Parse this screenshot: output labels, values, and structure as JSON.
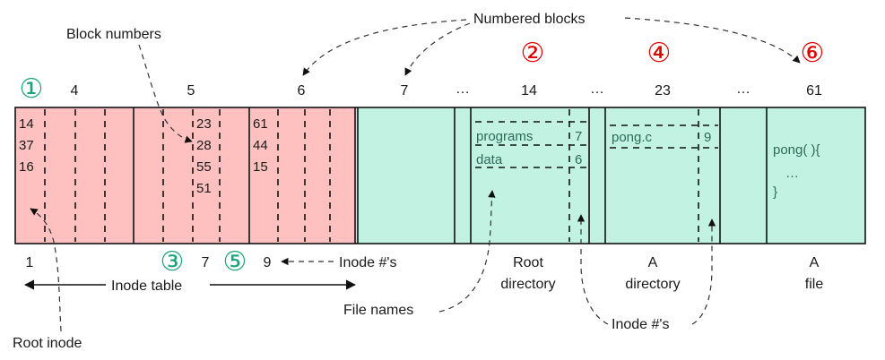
{
  "labels": {
    "numbered_blocks": "Numbered blocks",
    "block_numbers": "Block numbers",
    "inode_nums_right": "Inode #'s",
    "inode_table": "Inode table",
    "file_names": "File names",
    "inode_nums_bottom": "Inode #'s",
    "root_inode": "Root inode",
    "root_dir_1": "Root",
    "root_dir_2": "directory",
    "a_dir_1": "A",
    "a_dir_2": "directory",
    "a_file_1": "A",
    "a_file_2": "file"
  },
  "top_numbers": {
    "b4": "4",
    "b5": "5",
    "b6": "6",
    "b7": "7",
    "dots1": "…",
    "b14": "14",
    "dots2": "…",
    "b23": "23",
    "dots3": "…",
    "b61": "61"
  },
  "bottom_numbers": {
    "n1": "1",
    "n7": "7",
    "n9": "9"
  },
  "circled": {
    "c1": "①",
    "c2": "②",
    "c3": "③",
    "c4": "④",
    "c5": "⑤",
    "c6": "⑥"
  },
  "inode_cells": {
    "inode1": [
      "14",
      "37",
      "16"
    ],
    "inode7": [
      "23",
      "28",
      "55",
      "51"
    ],
    "inode9": [
      "61",
      "44",
      "15"
    ]
  },
  "root_directory": [
    {
      "name": "programs",
      "inode": "7"
    },
    {
      "name": "data",
      "inode": "6"
    }
  ],
  "a_directory": [
    {
      "name": "pong.c",
      "inode": "9"
    }
  ],
  "a_file": {
    "line1": "pong( ){",
    "line2": "…",
    "line3": "}"
  },
  "colors": {
    "inode_region": "#ffc0c0",
    "data_region": "#c2f2e1",
    "circle_red": "#e00000",
    "circle_green": "#1aa37a"
  }
}
